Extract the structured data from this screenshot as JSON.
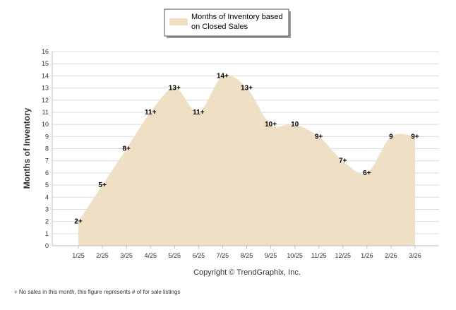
{
  "chart_data": {
    "type": "area",
    "title": "",
    "xlabel": "",
    "ylabel": "Months of Inventory",
    "ylim": [
      0,
      16
    ],
    "yticks": [
      0,
      1,
      2,
      3,
      4,
      5,
      6,
      7,
      8,
      9,
      10,
      11,
      12,
      13,
      14,
      15,
      16
    ],
    "grid": true,
    "legend_position": "top-center",
    "categories": [
      "1/25",
      "2/25",
      "3/25",
      "4/25",
      "5/25",
      "6/25",
      "7/25",
      "8/25",
      "9/25",
      "10/25",
      "11/25",
      "12/25",
      "1/26",
      "2/26",
      "3/26"
    ],
    "series": [
      {
        "name": "Months of Inventory based on Closed Sales",
        "legend_lines": [
          "Months of Inventory based",
          "on Closed Sales"
        ],
        "color": "#efdfc4",
        "values": [
          2,
          5,
          8,
          11,
          13,
          11,
          14,
          13,
          10,
          10,
          9,
          7,
          6,
          9,
          9
        ],
        "labels": [
          "2+",
          "5+",
          "8+",
          "11+",
          "13+",
          "11+",
          "14+",
          "13+",
          "10+",
          "10",
          "9+",
          "7+",
          "6+",
          "9",
          "9+"
        ]
      }
    ]
  },
  "copyright": "Copyright © TrendGraphix, Inc.",
  "footnote": "+  No sales in this month, this figure represents # of for sale listings"
}
